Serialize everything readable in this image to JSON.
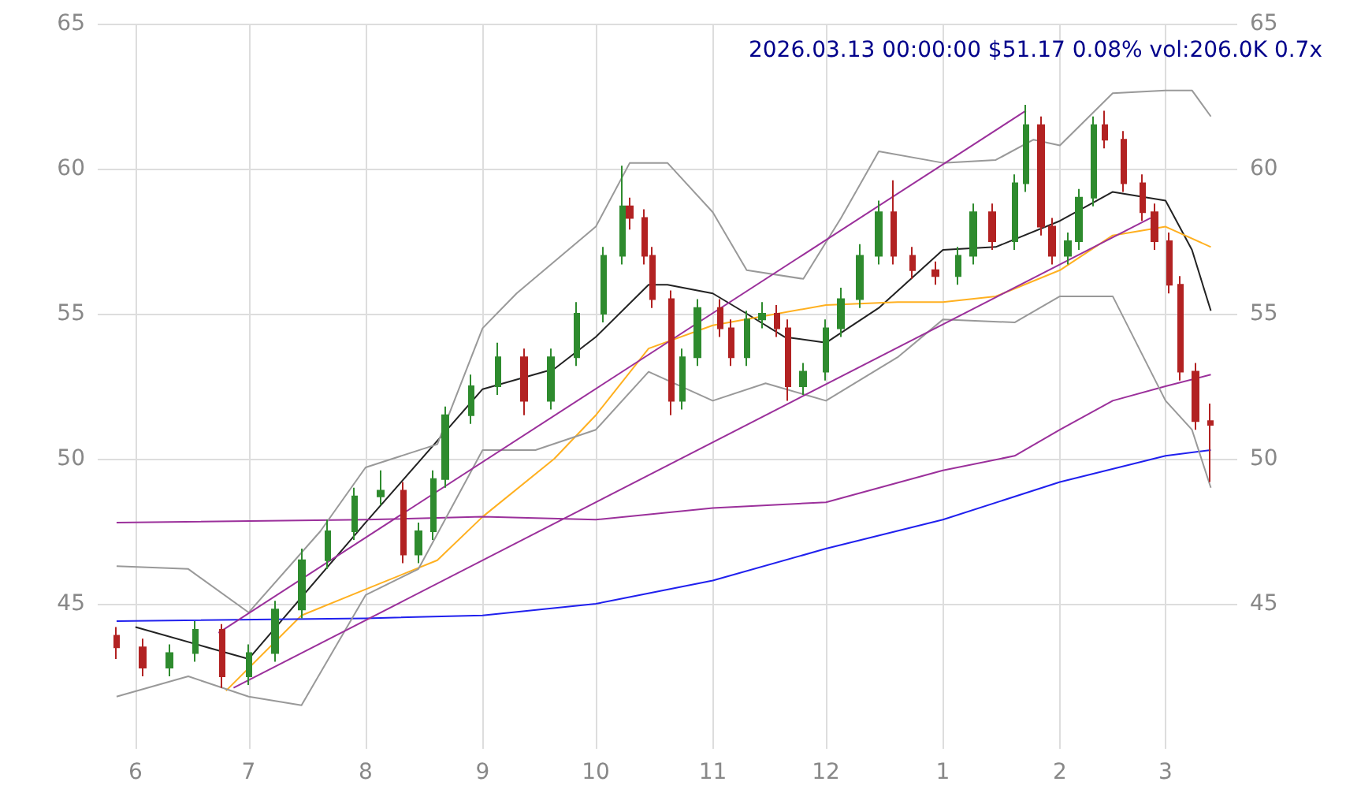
{
  "chart_data": {
    "type": "candlestick",
    "title": "2026.03.13 00:00:00 $51.17 0.08% vol:206.0K 0.7x",
    "x": [
      "2025-05-27",
      "2025-06-03",
      "2025-06-10",
      "2025-06-17",
      "2025-06-24",
      "2025-07-01",
      "2025-07-08",
      "2025-07-15",
      "2025-07-22",
      "2025-07-29",
      "2025-08-05",
      "2025-08-11",
      "2025-08-15",
      "2025-08-19",
      "2025-08-22",
      "2025-08-29",
      "2025-09-05",
      "2025-09-12",
      "2025-09-19",
      "2025-09-26",
      "2025-10-03",
      "2025-10-08",
      "2025-10-10",
      "2025-10-14",
      "2025-10-16",
      "2025-10-21",
      "2025-10-24",
      "2025-10-28",
      "2025-11-03",
      "2025-11-06",
      "2025-11-10",
      "2025-11-14",
      "2025-11-18",
      "2025-11-21",
      "2025-11-25",
      "2025-12-01",
      "2025-12-05",
      "2025-12-10",
      "2025-12-15",
      "2025-12-19",
      "2025-12-24",
      "2025-12-30",
      "2026-01-05",
      "2026-01-09",
      "2026-01-14",
      "2026-01-20",
      "2026-01-23",
      "2026-01-27",
      "2026-01-30",
      "2026-02-03",
      "2026-02-06",
      "2026-02-10",
      "2026-02-13",
      "2026-02-18",
      "2026-02-23",
      "2026-02-26",
      "2026-03-02",
      "2026-03-05",
      "2026-03-09",
      "2026-03-13"
    ],
    "ohlc": [
      [
        43.9,
        44.2,
        43.1,
        43.5
      ],
      [
        43.5,
        43.8,
        42.5,
        42.8
      ],
      [
        42.8,
        43.6,
        42.5,
        43.3
      ],
      [
        43.3,
        44.4,
        43.0,
        44.1
      ],
      [
        44.1,
        44.3,
        42.1,
        42.5
      ],
      [
        42.5,
        43.6,
        42.2,
        43.3
      ],
      [
        43.3,
        45.1,
        43.0,
        44.8
      ],
      [
        44.8,
        46.9,
        44.5,
        46.5
      ],
      [
        46.5,
        47.9,
        46.2,
        47.5
      ],
      [
        47.5,
        49.0,
        47.2,
        48.7
      ],
      [
        48.7,
        49.6,
        48.4,
        48.9
      ],
      [
        48.9,
        49.2,
        46.4,
        46.7
      ],
      [
        46.7,
        47.8,
        46.4,
        47.5
      ],
      [
        47.5,
        49.6,
        47.2,
        49.3
      ],
      [
        49.3,
        51.8,
        49.0,
        51.5
      ],
      [
        51.5,
        52.9,
        51.2,
        52.5
      ],
      [
        52.5,
        54.0,
        52.2,
        53.5
      ],
      [
        53.5,
        53.8,
        51.5,
        52.0
      ],
      [
        52.0,
        53.8,
        51.7,
        53.5
      ],
      [
        53.5,
        55.4,
        53.2,
        55.0
      ],
      [
        55.0,
        57.3,
        54.7,
        57.0
      ],
      [
        57.0,
        60.1,
        56.7,
        58.7
      ],
      [
        58.7,
        59.0,
        57.9,
        58.3
      ],
      [
        58.3,
        58.6,
        56.7,
        57.0
      ],
      [
        57.0,
        57.3,
        55.2,
        55.5
      ],
      [
        55.5,
        55.8,
        51.5,
        52.0
      ],
      [
        52.0,
        53.8,
        51.7,
        53.5
      ],
      [
        53.5,
        55.5,
        53.2,
        55.2
      ],
      [
        55.2,
        55.5,
        54.2,
        54.5
      ],
      [
        54.5,
        54.8,
        53.2,
        53.5
      ],
      [
        53.5,
        55.1,
        53.2,
        54.8
      ],
      [
        54.8,
        55.4,
        54.5,
        55.0
      ],
      [
        55.0,
        55.3,
        54.2,
        54.5
      ],
      [
        54.5,
        54.8,
        52.0,
        52.5
      ],
      [
        52.5,
        53.3,
        52.2,
        53.0
      ],
      [
        53.0,
        54.8,
        52.7,
        54.5
      ],
      [
        54.5,
        55.9,
        54.2,
        55.5
      ],
      [
        55.5,
        57.4,
        55.2,
        57.0
      ],
      [
        57.0,
        58.9,
        56.7,
        58.5
      ],
      [
        58.5,
        59.6,
        56.7,
        57.0
      ],
      [
        57.0,
        57.3,
        56.2,
        56.5
      ],
      [
        56.5,
        56.8,
        56.0,
        56.3
      ],
      [
        56.3,
        57.3,
        56.0,
        57.0
      ],
      [
        57.0,
        58.8,
        56.7,
        58.5
      ],
      [
        58.5,
        58.8,
        57.2,
        57.5
      ],
      [
        57.5,
        59.8,
        57.2,
        59.5
      ],
      [
        59.5,
        62.2,
        59.2,
        61.5
      ],
      [
        61.5,
        61.8,
        57.7,
        58.0
      ],
      [
        58.0,
        58.3,
        56.7,
        57.0
      ],
      [
        57.0,
        57.8,
        56.7,
        57.5
      ],
      [
        57.5,
        59.3,
        57.2,
        59.0
      ],
      [
        59.0,
        61.8,
        58.7,
        61.5
      ],
      [
        61.5,
        62.0,
        60.7,
        61.0
      ],
      [
        61.0,
        61.3,
        59.2,
        59.5
      ],
      [
        59.5,
        59.8,
        58.2,
        58.5
      ],
      [
        58.5,
        58.8,
        57.2,
        57.5
      ],
      [
        57.5,
        57.8,
        55.7,
        56.0
      ],
      [
        56.0,
        56.3,
        52.7,
        53.0
      ],
      [
        53.0,
        53.3,
        51.0,
        51.3
      ],
      [
        51.3,
        51.9,
        49.2,
        51.17
      ]
    ],
    "colors": [
      "#b22222",
      "#b22222",
      "#2e8b2e",
      "#2e8b2e",
      "#b22222",
      "#2e8b2e",
      "#2e8b2e",
      "#2e8b2e",
      "#2e8b2e",
      "#2e8b2e",
      "#2e8b2e",
      "#b22222",
      "#2e8b2e",
      "#2e8b2e",
      "#2e8b2e",
      "#2e8b2e",
      "#2e8b2e",
      "#b22222",
      "#2e8b2e",
      "#2e8b2e",
      "#2e8b2e",
      "#2e8b2e",
      "#b22222",
      "#b22222",
      "#b22222",
      "#b22222",
      "#2e8b2e",
      "#2e8b2e",
      "#b22222",
      "#b22222",
      "#2e8b2e",
      "#2e8b2e",
      "#b22222",
      "#b22222",
      "#2e8b2e",
      "#2e8b2e",
      "#2e8b2e",
      "#2e8b2e",
      "#2e8b2e",
      "#b22222",
      "#b22222",
      "#b22222",
      "#2e8b2e",
      "#2e8b2e",
      "#b22222",
      "#2e8b2e",
      "#2e8b2e",
      "#b22222",
      "#b22222",
      "#2e8b2e",
      "#2e8b2e",
      "#2e8b2e",
      "#b22222",
      "#b22222",
      "#b22222",
      "#b22222",
      "#b22222",
      "#b22222",
      "#b22222",
      "#b22222"
    ],
    "series": [
      {
        "type": "line",
        "color": "#222222",
        "x": [
          "2025-06-01",
          "2025-06-20",
          "2025-07-01",
          "2025-08-01",
          "2025-09-01",
          "2025-09-20",
          "2025-10-01",
          "2025-10-15",
          "2025-10-20",
          "2025-11-01",
          "2025-11-10",
          "2025-11-20",
          "2025-12-01",
          "2025-12-15",
          "2026-01-01",
          "2026-01-15",
          "2026-02-01",
          "2026-02-15",
          "2026-03-01",
          "2026-03-08",
          "2026-03-13"
        ],
        "values": [
          44.2,
          43.5,
          43.1,
          47.8,
          52.4,
          53.1,
          54.2,
          56.0,
          56.0,
          55.7,
          55.0,
          54.2,
          54.0,
          55.2,
          57.2,
          57.3,
          58.2,
          59.2,
          58.9,
          57.2,
          55.1
        ]
      },
      {
        "type": "line",
        "color": "#ffb020",
        "x": [
          "2025-06-25",
          "2025-07-15",
          "2025-08-01",
          "2025-08-20",
          "2025-09-01",
          "2025-09-20",
          "2025-10-01",
          "2025-10-15",
          "2025-11-01",
          "2025-12-01",
          "2025-12-20",
          "2026-01-01",
          "2026-01-15",
          "2026-02-01",
          "2026-02-15",
          "2026-03-01",
          "2026-03-13"
        ],
        "values": [
          42.0,
          44.6,
          45.5,
          46.5,
          48.0,
          50.0,
          51.5,
          53.8,
          54.6,
          55.3,
          55.4,
          55.4,
          55.6,
          56.5,
          57.7,
          58.0,
          57.3
        ]
      },
      {
        "type": "line",
        "color": "#9b309b",
        "x": [
          "2025-05-27",
          "2025-08-01",
          "2025-09-01",
          "2025-10-01",
          "2025-11-01",
          "2025-12-01",
          "2026-01-01",
          "2026-01-20",
          "2026-02-01",
          "2026-02-15",
          "2026-03-01",
          "2026-03-13"
        ],
        "values": [
          47.8,
          47.9,
          48.0,
          47.9,
          48.3,
          48.5,
          49.6,
          50.1,
          51.0,
          52.0,
          52.5,
          52.9
        ]
      },
      {
        "type": "line",
        "color": "#2020ee",
        "x": [
          "2025-05-27",
          "2025-08-01",
          "2025-09-01",
          "2025-10-01",
          "2025-11-01",
          "2025-12-01",
          "2026-01-01",
          "2026-02-01",
          "2026-03-01",
          "2026-03-13"
        ],
        "values": [
          44.4,
          44.5,
          44.6,
          45.0,
          45.8,
          46.9,
          47.9,
          49.2,
          50.1,
          50.3
        ]
      },
      {
        "type": "line",
        "color": "#999999",
        "x": [
          "2025-05-27",
          "2025-06-15",
          "2025-07-01",
          "2025-07-20",
          "2025-08-01",
          "2025-08-20",
          "2025-09-01",
          "2025-09-10",
          "2025-10-01",
          "2025-10-10",
          "2025-10-20",
          "2025-11-01",
          "2025-11-10",
          "2025-11-25",
          "2025-12-05",
          "2025-12-15",
          "2026-01-01",
          "2026-01-15",
          "2026-01-25",
          "2026-02-01",
          "2026-02-15",
          "2026-03-01",
          "2026-03-08",
          "2026-03-13"
        ],
        "values": [
          46.3,
          46.2,
          44.7,
          47.5,
          49.7,
          50.5,
          54.5,
          55.7,
          58.0,
          60.2,
          60.2,
          58.5,
          56.5,
          56.2,
          58.3,
          60.6,
          60.2,
          60.3,
          61.0,
          60.8,
          62.6,
          62.7,
          62.7,
          61.8
        ]
      },
      {
        "type": "line",
        "color": "#999999",
        "x": [
          "2025-05-27",
          "2025-06-15",
          "2025-07-01",
          "2025-07-15",
          "2025-08-01",
          "2025-08-15",
          "2025-09-01",
          "2025-09-15",
          "2025-10-01",
          "2025-10-15",
          "2025-11-01",
          "2025-11-15",
          "2025-12-01",
          "2025-12-20",
          "2026-01-01",
          "2026-01-20",
          "2026-02-01",
          "2026-02-15",
          "2026-03-01",
          "2026-03-08",
          "2026-03-13"
        ],
        "values": [
          41.8,
          42.5,
          41.8,
          41.5,
          45.3,
          46.2,
          50.3,
          50.3,
          51.0,
          53.0,
          52.0,
          52.6,
          52.0,
          53.5,
          54.8,
          54.7,
          55.6,
          55.6,
          52.0,
          51.0,
          49.0
        ]
      },
      {
        "type": "line",
        "color": "#9b309b",
        "x": [
          "2025-06-23",
          "2026-01-23"
        ],
        "values": [
          44.0,
          62.0
        ]
      },
      {
        "type": "line",
        "color": "#9b309b",
        "x": [
          "2025-06-27",
          "2026-02-25"
        ],
        "values": [
          42.1,
          58.3
        ]
      }
    ],
    "xlim": [
      "2025-05-22",
      "2026-03-20"
    ],
    "xticks": [
      {
        "value": "2025-06-01",
        "label": "6"
      },
      {
        "value": "2025-07-01",
        "label": "7"
      },
      {
        "value": "2025-08-01",
        "label": "8"
      },
      {
        "value": "2025-09-01",
        "label": "9"
      },
      {
        "value": "2025-10-01",
        "label": "10"
      },
      {
        "value": "2025-11-01",
        "label": "11"
      },
      {
        "value": "2025-12-01",
        "label": "12"
      },
      {
        "value": "2026-01-01",
        "label": "1"
      },
      {
        "value": "2026-02-01",
        "label": "2"
      },
      {
        "value": "2026-03-01",
        "label": "3"
      }
    ],
    "ylim": [
      40,
      65
    ],
    "yticks": [
      45,
      50,
      55,
      60,
      65
    ],
    "y2lim": [
      40,
      65
    ],
    "y2ticks": [
      45,
      50,
      55,
      60,
      65
    ],
    "grid": true
  }
}
